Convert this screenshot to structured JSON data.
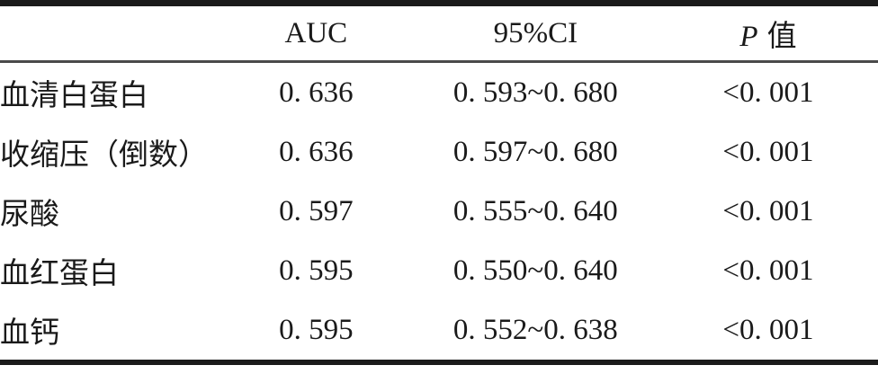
{
  "table": {
    "header": {
      "label_col": "",
      "auc": "AUC",
      "ci": "95%CI",
      "p_symbol": "P",
      "p_label": "值"
    },
    "rows": [
      {
        "label": "血清白蛋白",
        "auc": "0. 636",
        "ci": "0. 593~0. 680",
        "p": "<0. 001"
      },
      {
        "label": "收缩压（倒数）",
        "auc": "0. 636",
        "ci": "0. 597~0. 680",
        "p": "<0. 001"
      },
      {
        "label": "尿酸",
        "auc": "0. 597",
        "ci": "0. 555~0. 640",
        "p": "<0. 001"
      },
      {
        "label": "血红蛋白",
        "auc": "0. 595",
        "ci": "0. 550~0. 640",
        "p": "<0. 001"
      },
      {
        "label": "血钙",
        "auc": "0. 595",
        "ci": "0. 552~0. 638",
        "p": "<0. 001"
      }
    ],
    "colors": {
      "text": "#1a1a1a",
      "rule_thick": "#1b1b1b",
      "rule_thin": "#4a4a4a",
      "background": "#ffffff"
    }
  }
}
